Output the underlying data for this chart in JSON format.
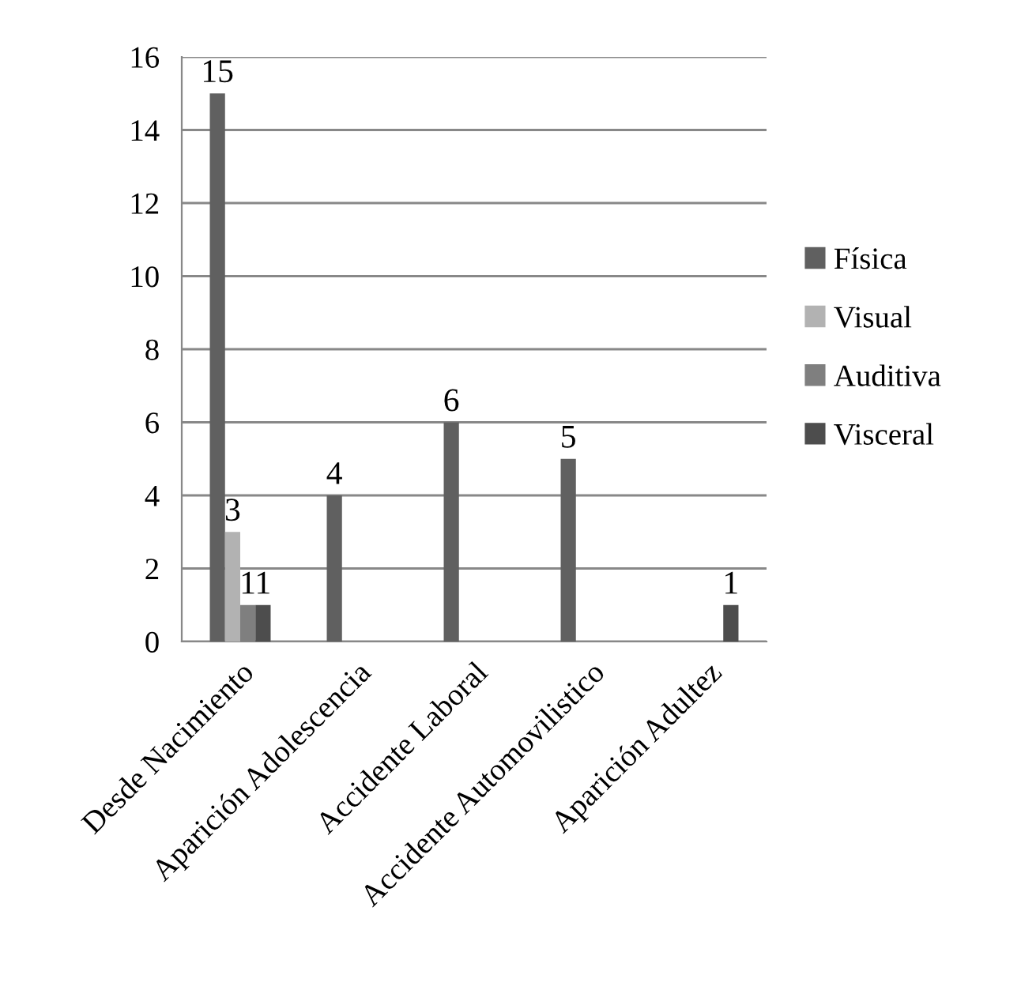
{
  "chart_data": {
    "type": "bar",
    "categories": [
      "Desde Nacimiento",
      "Aparición Adolescencia",
      "Accidente Laboral",
      "Accidente Automovilistico",
      "Aparición Adultez"
    ],
    "series": [
      {
        "name": "Física",
        "color": "#606060",
        "values": [
          15,
          4,
          6,
          5,
          null
        ]
      },
      {
        "name": "Visual",
        "color": "#b2b2b2",
        "values": [
          3,
          null,
          null,
          null,
          null
        ]
      },
      {
        "name": "Auditiva",
        "color": "#7f7f7f",
        "values": [
          1,
          null,
          null,
          null,
          null
        ]
      },
      {
        "name": "Visceral",
        "color": "#4d4d4d",
        "values": [
          1,
          null,
          null,
          null,
          1
        ]
      }
    ],
    "ylim": [
      0,
      16
    ],
    "yticks": [
      0,
      2,
      4,
      6,
      8,
      10,
      12,
      14,
      16
    ],
    "grid": "y",
    "legend": "right",
    "data_labels": true
  }
}
